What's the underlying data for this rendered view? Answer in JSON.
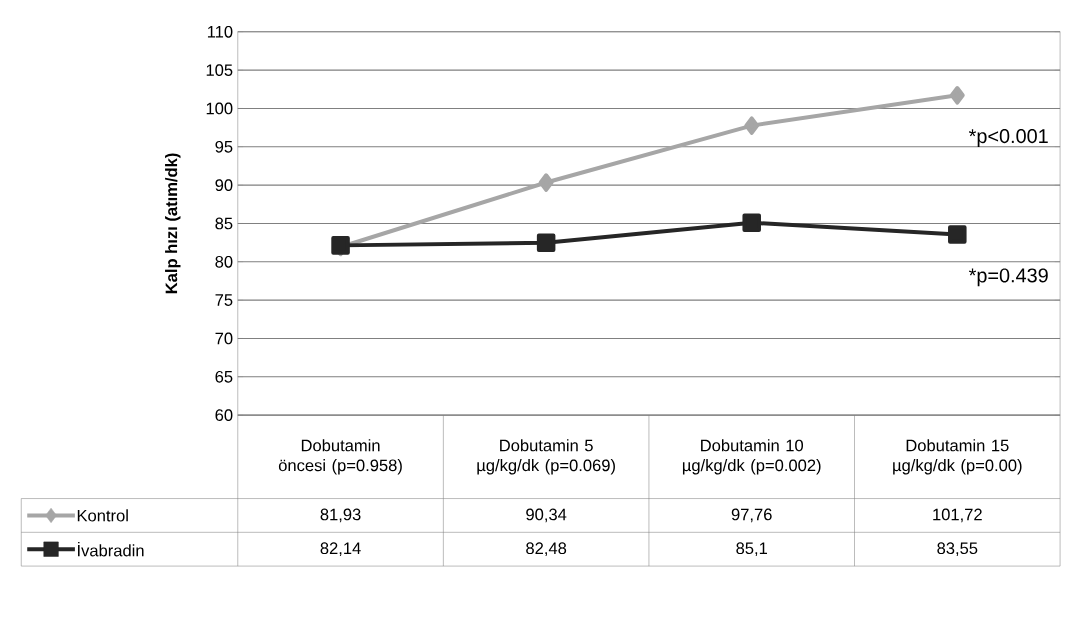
{
  "chart_data": {
    "type": "line",
    "ylabel": "Kalp hızı (atım/dk)",
    "categories": [
      "Dobutamin öncesi (p=0.958)",
      "Dobutamin 5 µg/kg/dk (p=0.069)",
      "Dobutamin 10 µg/kg/dk (p=0.002)",
      "Dobutamin 15 µg/kg/dk (p=0.00)"
    ],
    "series": [
      {
        "name": "Kontrol",
        "color": "#a6a6a6",
        "marker": "diamond",
        "values": [
          81.93,
          90.34,
          97.76,
          101.72
        ],
        "value_labels": [
          "81,93",
          "90,34",
          "97,76",
          "101,72"
        ]
      },
      {
        "name": "İvabradin",
        "color": "#262626",
        "marker": "square",
        "values": [
          82.14,
          82.48,
          85.1,
          83.55
        ],
        "value_labels": [
          "82,14",
          "82,48",
          "85,1",
          "83,55"
        ]
      }
    ],
    "annotations": [
      "*p<0.001",
      "*p=0.439"
    ],
    "ylim": [
      60,
      110
    ],
    "yticks": [
      60,
      65,
      70,
      75,
      80,
      85,
      90,
      95,
      100,
      105,
      110
    ],
    "grid": "y",
    "legend": "bottom",
    "line_style": "solid"
  }
}
